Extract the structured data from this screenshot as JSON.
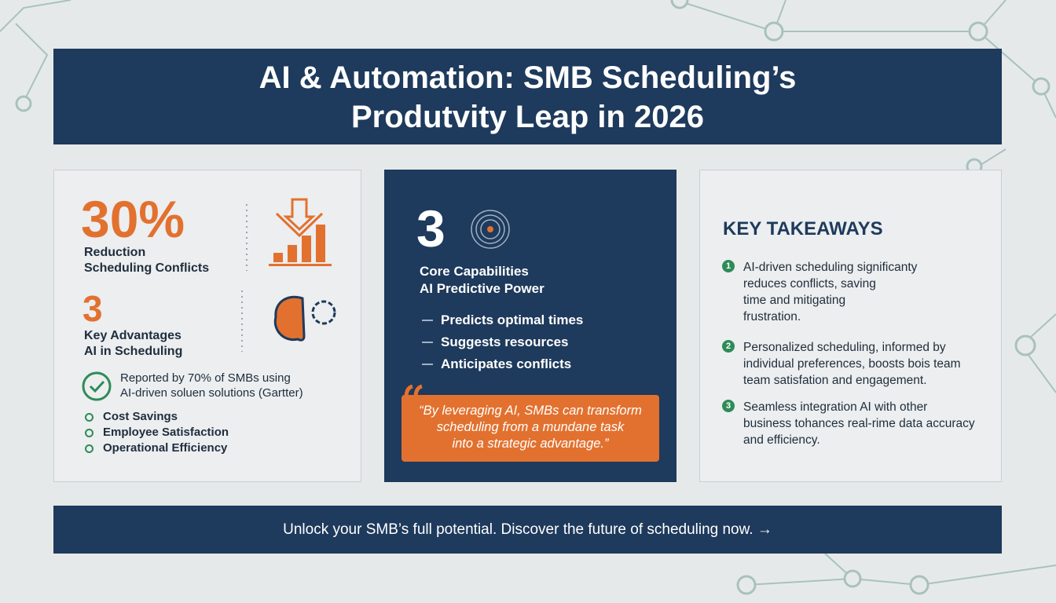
{
  "header": {
    "title_lines": [
      "AI & Automation: SMB Scheduling’s",
      "Produtvity Leap in 2026"
    ]
  },
  "left_panel": {
    "stat1": {
      "value": "30%",
      "label_lines": [
        "Reduction",
        "Scheduling Conflicts"
      ]
    },
    "stat2": {
      "value": "3",
      "label_lines": [
        "Key Advantages",
        "AI in Scheduling"
      ]
    },
    "note_lines": [
      "Reported by 70% of SMBs using",
      "AI-driven soluen solutions (Gartter)"
    ],
    "bullets": [
      "Cost Savings",
      "Employee Satisfaсtion",
      "Operational Efficiency"
    ]
  },
  "middle_panel": {
    "stat": {
      "value": "3",
      "label_lines": [
        "Core Capabilities",
        "AI Predictive Power"
      ]
    },
    "bullets": [
      "Predicts optimal times",
      "Suggests resources",
      "Anticipates conflicts"
    ],
    "quote_lines": [
      "“By leveraging AI, SMBs can transform",
      "scheduling from a mundane task",
      "into a strategic advantage.”"
    ]
  },
  "right_panel": {
    "title": "KEY TAKEAWAYS",
    "items": [
      {
        "number": "1",
        "lines": [
          "AI-driven scheduling significanty",
          "reduces conflicts, saving",
          "time and mitigating",
          "frustration."
        ]
      },
      {
        "number": "2",
        "lines": [
          "Personalized scheduling, informed by",
          "individual preferences, boosts bois team",
          "team satisfation and engagement."
        ]
      },
      {
        "number": "3",
        "lines": [
          "Seamless integration AI with other",
          "business tohances real-rime data accuracy",
          "and efficiency."
        ]
      }
    ]
  },
  "footer": {
    "text": "Unlock your SMB’s full potential. Discover the future of scheduling now. →"
  }
}
